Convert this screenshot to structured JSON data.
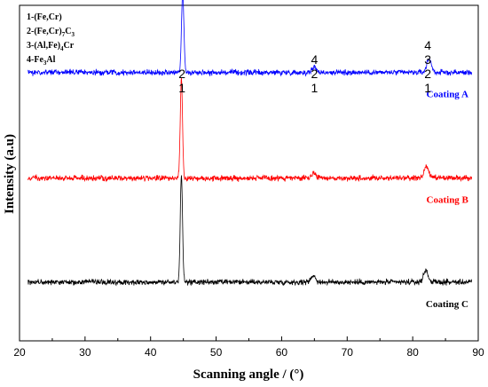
{
  "chart_data": {
    "type": "line",
    "xlabel": "Scanning angle / (°)",
    "ylabel": "Intensity (a.u)",
    "xlim": [
      20,
      90
    ],
    "xticks": [
      20,
      30,
      40,
      50,
      60,
      70,
      80,
      90
    ],
    "grid": false,
    "legend_placement": "top-left",
    "legend": [
      {
        "prefix": "1-(Fe,Cr)",
        "parts": []
      },
      {
        "prefix": "2-(Fe,Cr)",
        "parts": [
          {
            "t": "7",
            "sub": true
          },
          {
            "t": "C",
            "sub": false
          },
          {
            "t": "3",
            "sub": true
          }
        ]
      },
      {
        "prefix": "3-(Al,Fe)",
        "parts": [
          {
            "t": "4",
            "sub": true
          },
          {
            "t": "Cr",
            "sub": false
          }
        ]
      },
      {
        "prefix": "4-Fe",
        "parts": [
          {
            "t": "3",
            "sub": true
          },
          {
            "t": "Al",
            "sub": false
          }
        ]
      }
    ],
    "peak_annotations": [
      {
        "x": 44.8,
        "labels": [
          "2",
          "1"
        ]
      },
      {
        "x": 65.0,
        "labels": [
          "4",
          "2",
          "1"
        ]
      },
      {
        "x": 82.3,
        "labels": [
          "4",
          "3",
          "2",
          "1"
        ]
      }
    ],
    "series": [
      {
        "name": "Coating A",
        "color": "#0000ff",
        "baseline": 0.8,
        "noise": 0.012,
        "peaks": [
          {
            "x": 44.9,
            "height": 0.24,
            "width": 0.18
          },
          {
            "x": 65.0,
            "height": 0.015,
            "width": 0.35
          },
          {
            "x": 82.5,
            "height": 0.04,
            "width": 0.35
          }
        ]
      },
      {
        "name": "Coating B",
        "color": "#ff0000",
        "baseline": 0.485,
        "noise": 0.012,
        "peaks": [
          {
            "x": 44.7,
            "height": 0.3,
            "width": 0.17
          },
          {
            "x": 64.9,
            "height": 0.015,
            "width": 0.35
          },
          {
            "x": 82.1,
            "height": 0.035,
            "width": 0.35
          }
        ]
      },
      {
        "name": "Coating C",
        "color": "#000000",
        "baseline": 0.175,
        "noise": 0.012,
        "peaks": [
          {
            "x": 44.7,
            "height": 0.32,
            "width": 0.17
          },
          {
            "x": 64.8,
            "height": 0.02,
            "width": 0.35
          },
          {
            "x": 82.0,
            "height": 0.035,
            "width": 0.35
          }
        ]
      }
    ]
  }
}
